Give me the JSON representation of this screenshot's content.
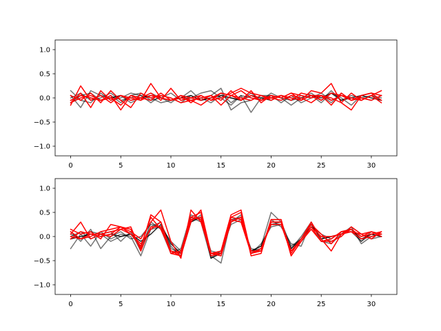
{
  "figure": {
    "background": "#ffffff",
    "axes_color": "#000000",
    "line_width": 1.5
  },
  "chart_data": [
    {
      "type": "line",
      "xlim": [
        -1.55,
        32.55
      ],
      "ylim": [
        -1.2,
        1.2
      ],
      "xticks": [
        0,
        5,
        10,
        15,
        20,
        25,
        30
      ],
      "yticks": [
        -1.0,
        -0.5,
        0.0,
        0.5,
        1.0
      ],
      "xtick_labels": [
        "0",
        "5",
        "10",
        "15",
        "20",
        "25",
        "30"
      ],
      "ytick_labels": [
        "−1.0",
        "−0.5",
        "0.0",
        "0.5",
        "1.0"
      ],
      "grid": false,
      "x": [
        0,
        1,
        2,
        3,
        4,
        5,
        6,
        7,
        8,
        9,
        10,
        11,
        12,
        13,
        14,
        15,
        16,
        17,
        18,
        19,
        20,
        21,
        22,
        23,
        24,
        25,
        26,
        27,
        28,
        29,
        30,
        31
      ],
      "series": [
        {
          "color": "#000000",
          "alpha": 0.55,
          "values": [
            0.15,
            -0.05,
            -0.1,
            0.1,
            -0.05,
            0.0,
            0.1,
            0.05,
            0.0,
            -0.1,
            -0.05,
            0.0,
            0.15,
            -0.05,
            0.05,
            0.2,
            -0.25,
            -0.1,
            -0.05,
            0.05,
            0.05,
            0.0,
            -0.15,
            0.0,
            0.05,
            -0.1,
            0.1,
            0.0,
            -0.15,
            0.05,
            0.1,
            0.05
          ]
        },
        {
          "color": "#000000",
          "alpha": 0.55,
          "values": [
            -0.1,
            0.05,
            0.1,
            -0.05,
            0.05,
            -0.1,
            0.05,
            0.1,
            -0.05,
            0.0,
            0.1,
            -0.05,
            0.0,
            0.1,
            0.15,
            0.0,
            -0.15,
            0.05,
            -0.3,
            0.0,
            0.05,
            -0.1,
            0.05,
            -0.1,
            0.0,
            0.1,
            -0.05,
            0.05,
            0.0,
            -0.05,
            0.05,
            0.0
          ]
        },
        {
          "color": "#000000",
          "alpha": 0.55,
          "values": [
            0.05,
            -0.2,
            0.15,
            0.05,
            0.0,
            0.05,
            -0.1,
            0.0,
            0.1,
            0.0,
            -0.1,
            0.05,
            -0.05,
            0.0,
            -0.1,
            0.05,
            0.0,
            -0.05,
            0.1,
            -0.05,
            0.0,
            0.05,
            -0.05,
            0.0,
            0.1,
            -0.05,
            0.15,
            -0.05,
            0.05,
            0.0,
            -0.05,
            0.05
          ]
        },
        {
          "color": "#000000",
          "alpha": 0.55,
          "values": [
            0.0,
            0.1,
            -0.05,
            0.0,
            0.1,
            -0.05,
            0.0,
            0.05,
            -0.1,
            0.05,
            0.0,
            -0.1,
            0.05,
            -0.05,
            0.0,
            0.1,
            -0.1,
            0.05,
            0.0,
            -0.05,
            0.1,
            0.0,
            -0.05,
            0.05,
            0.0,
            0.05,
            -0.1,
            0.1,
            -0.05,
            0.0,
            0.05,
            -0.05
          ]
        },
        {
          "color": "#000000",
          "alpha": 0.8,
          "values": [
            -0.05,
            0.05,
            0.0,
            -0.05,
            0.0,
            0.05,
            -0.05,
            0.0,
            0.05,
            0.0,
            -0.05,
            0.0,
            0.05,
            -0.05,
            0.0,
            0.05,
            0.0,
            -0.05,
            0.05,
            0.0,
            -0.05,
            0.05,
            0.0,
            -0.05,
            0.05,
            0.0,
            0.1,
            -0.05,
            0.0,
            0.05,
            0.0,
            -0.05
          ]
        },
        {
          "color": "#ff0000",
          "alpha": 1.0,
          "values": [
            -0.15,
            0.25,
            -0.05,
            0.05,
            -0.1,
            0.05,
            -0.05,
            0.0,
            0.1,
            -0.05,
            0.2,
            -0.05,
            0.0,
            -0.05,
            0.05,
            -0.15,
            0.05,
            0.15,
            0.0,
            -0.05,
            0.05,
            0.0,
            0.1,
            -0.05,
            0.15,
            0.1,
            0.3,
            -0.1,
            -0.25,
            0.05,
            0.1,
            0.05
          ]
        },
        {
          "color": "#ff0000",
          "alpha": 1.0,
          "values": [
            -0.1,
            0.1,
            -0.2,
            0.15,
            -0.05,
            0.05,
            0.0,
            -0.05,
            0.3,
            0.0,
            -0.05,
            0.05,
            -0.1,
            0.05,
            -0.05,
            0.0,
            0.1,
            0.2,
            0.1,
            0.05,
            -0.05,
            0.05,
            -0.05,
            0.1,
            0.05,
            -0.05,
            0.1,
            0.05,
            -0.05,
            0.0,
            -0.05,
            0.05
          ]
        },
        {
          "color": "#ff0000",
          "alpha": 1.0,
          "values": [
            0.05,
            -0.05,
            0.1,
            -0.1,
            0.15,
            -0.05,
            -0.2,
            0.1,
            0.0,
            0.05,
            0.0,
            -0.1,
            -0.05,
            -0.15,
            0.0,
            0.1,
            0.05,
            -0.05,
            0.15,
            -0.1,
            0.05,
            0.0,
            0.1,
            0.05,
            0.0,
            0.05,
            -0.15,
            0.1,
            -0.05,
            0.05,
            0.1,
            -0.05
          ]
        },
        {
          "color": "#ff0000",
          "alpha": 1.0,
          "values": [
            -0.1,
            0.0,
            0.05,
            -0.05,
            0.0,
            -0.15,
            0.05,
            0.0,
            -0.05,
            0.1,
            -0.05,
            0.05,
            0.0,
            0.05,
            -0.05,
            0.1,
            0.05,
            0.0,
            -0.05,
            0.05,
            0.0,
            -0.05,
            0.05,
            0.0,
            -0.1,
            0.05,
            0.0,
            -0.1,
            0.1,
            -0.05,
            0.05,
            0.15
          ]
        },
        {
          "color": "#ff0000",
          "alpha": 1.0,
          "values": [
            -0.05,
            0.05,
            0.0,
            -0.05,
            0.05,
            -0.25,
            0.05,
            -0.05,
            0.05,
            0.0,
            -0.05,
            0.0,
            -0.05,
            0.0,
            0.05,
            -0.05,
            0.15,
            -0.05,
            0.05,
            -0.05,
            0.0,
            0.05,
            0.0,
            -0.05,
            0.05,
            0.05,
            -0.05,
            0.05,
            0.0,
            -0.05,
            0.05,
            -0.1
          ]
        }
      ]
    },
    {
      "type": "line",
      "xlim": [
        -1.55,
        32.55
      ],
      "ylim": [
        -1.2,
        1.2
      ],
      "xticks": [
        0,
        5,
        10,
        15,
        20,
        25,
        30
      ],
      "yticks": [
        -1.0,
        -0.5,
        0.0,
        0.5,
        1.0
      ],
      "xtick_labels": [
        "0",
        "5",
        "10",
        "15",
        "20",
        "25",
        "30"
      ],
      "ytick_labels": [
        "−1.0",
        "−0.5",
        "0.0",
        "0.5",
        "1.0"
      ],
      "grid": false,
      "x": [
        0,
        1,
        2,
        3,
        4,
        5,
        6,
        7,
        8,
        9,
        10,
        11,
        12,
        13,
        14,
        15,
        16,
        17,
        18,
        19,
        20,
        21,
        22,
        23,
        24,
        25,
        26,
        27,
        28,
        29,
        30,
        31
      ],
      "series": [
        {
          "color": "#000000",
          "alpha": 0.55,
          "values": [
            -0.25,
            0.05,
            -0.2,
            0.1,
            -0.05,
            0.05,
            0.0,
            -0.4,
            0.15,
            0.2,
            -0.2,
            -0.4,
            0.3,
            0.45,
            -0.4,
            -0.55,
            0.35,
            0.4,
            -0.3,
            -0.2,
            0.5,
            0.3,
            -0.25,
            0.0,
            0.3,
            -0.1,
            -0.15,
            0.05,
            0.2,
            0.05,
            -0.05,
            0.0
          ]
        },
        {
          "color": "#000000",
          "alpha": 0.55,
          "values": [
            0.1,
            -0.1,
            0.15,
            -0.25,
            0.0,
            0.1,
            -0.05,
            0.0,
            0.25,
            0.2,
            -0.1,
            -0.3,
            0.35,
            0.4,
            -0.35,
            -0.4,
            0.3,
            0.45,
            -0.35,
            -0.15,
            0.2,
            0.25,
            -0.3,
            -0.1,
            0.2,
            0.05,
            -0.05,
            0.1,
            0.15,
            -0.1,
            0.1,
            0.05
          ]
        },
        {
          "color": "#000000",
          "alpha": 0.55,
          "values": [
            0.0,
            0.1,
            -0.05,
            0.05,
            0.1,
            -0.1,
            0.1,
            -0.3,
            0.3,
            0.15,
            -0.35,
            -0.25,
            0.45,
            0.35,
            -0.3,
            -0.35,
            0.35,
            0.3,
            -0.25,
            -0.3,
            0.35,
            0.2,
            -0.15,
            -0.2,
            0.3,
            -0.05,
            0.0,
            0.05,
            0.1,
            -0.1,
            0.05,
            0.0
          ]
        },
        {
          "color": "#000000",
          "alpha": 0.55,
          "values": [
            0.05,
            -0.05,
            0.1,
            0.05,
            -0.1,
            0.0,
            0.05,
            -0.2,
            0.2,
            0.3,
            -0.25,
            -0.35,
            0.4,
            0.3,
            -0.45,
            -0.3,
            0.25,
            0.35,
            -0.3,
            -0.25,
            0.25,
            0.3,
            -0.2,
            -0.05,
            0.2,
            0.0,
            -0.1,
            0.0,
            0.2,
            -0.15,
            0.0,
            0.05
          ]
        },
        {
          "color": "#000000",
          "alpha": 0.85,
          "values": [
            -0.05,
            0.0,
            0.05,
            0.0,
            0.05,
            0.0,
            0.05,
            -0.1,
            0.05,
            0.25,
            -0.15,
            -0.35,
            0.3,
            0.4,
            -0.45,
            -0.35,
            0.3,
            0.4,
            -0.3,
            -0.2,
            0.25,
            0.25,
            -0.25,
            -0.05,
            0.25,
            -0.05,
            0.0,
            0.05,
            0.15,
            -0.05,
            0.05,
            0.0
          ]
        },
        {
          "color": "#ff0000",
          "alpha": 1.0,
          "values": [
            0.15,
            0.05,
            0.1,
            -0.05,
            0.25,
            0.2,
            0.1,
            -0.05,
            0.3,
            0.55,
            -0.1,
            -0.45,
            0.55,
            0.3,
            -0.35,
            -0.35,
            0.4,
            0.5,
            -0.4,
            -0.35,
            0.35,
            0.35,
            -0.4,
            -0.1,
            0.15,
            -0.1,
            -0.1,
            0.0,
            0.2,
            0.05,
            0.1,
            0.05
          ]
        },
        {
          "color": "#ff0000",
          "alpha": 1.0,
          "values": [
            0.05,
            0.3,
            -0.05,
            0.05,
            0.0,
            0.15,
            0.05,
            -0.2,
            0.4,
            0.15,
            -0.3,
            -0.4,
            0.3,
            0.55,
            -0.35,
            -0.3,
            0.45,
            0.55,
            -0.35,
            -0.25,
            0.3,
            0.3,
            -0.3,
            -0.05,
            0.25,
            0.05,
            -0.15,
            0.1,
            0.1,
            0.05,
            -0.05,
            0.1
          ]
        },
        {
          "color": "#ff0000",
          "alpha": 1.0,
          "values": [
            0.1,
            -0.05,
            0.0,
            0.1,
            0.15,
            0.2,
            0.15,
            -0.25,
            0.45,
            0.3,
            -0.35,
            -0.3,
            0.4,
            0.35,
            -0.4,
            -0.35,
            0.35,
            0.3,
            -0.35,
            -0.25,
            0.25,
            0.25,
            -0.35,
            -0.05,
            0.3,
            -0.05,
            -0.3,
            0.05,
            0.1,
            -0.05,
            0.0,
            0.05
          ]
        },
        {
          "color": "#ff0000",
          "alpha": 1.0,
          "values": [
            -0.05,
            0.1,
            0.05,
            0.0,
            0.05,
            0.2,
            0.05,
            -0.15,
            0.15,
            0.3,
            -0.3,
            -0.35,
            0.35,
            0.4,
            -0.35,
            -0.35,
            0.4,
            0.35,
            -0.35,
            -0.3,
            0.35,
            0.35,
            -0.4,
            -0.1,
            0.2,
            0.0,
            0.0,
            0.05,
            0.15,
            0.0,
            0.05,
            0.1
          ]
        },
        {
          "color": "#ff0000",
          "alpha": 1.0,
          "values": [
            0.0,
            -0.05,
            0.05,
            0.05,
            0.1,
            0.15,
            0.2,
            -0.3,
            0.2,
            0.2,
            -0.35,
            -0.4,
            0.4,
            0.5,
            -0.35,
            -0.4,
            0.3,
            0.4,
            -0.3,
            -0.3,
            0.3,
            0.3,
            -0.3,
            -0.1,
            0.2,
            -0.1,
            -0.05,
            0.1,
            0.15,
            0.0,
            0.1,
            0.0
          ]
        }
      ]
    }
  ]
}
